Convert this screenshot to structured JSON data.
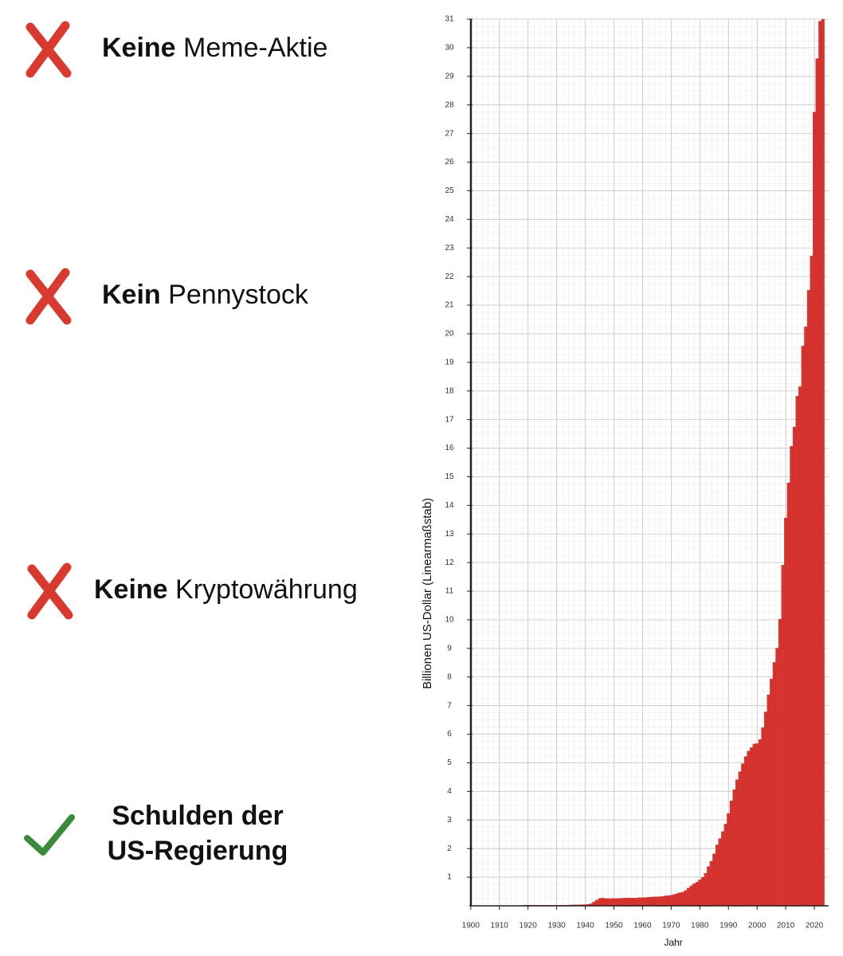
{
  "items": [
    {
      "mark": "cross",
      "bold": "Keine",
      "text": "Meme-Aktie"
    },
    {
      "mark": "cross",
      "bold": "Kein",
      "text": "Pennystock"
    },
    {
      "mark": "cross",
      "bold": "Keine",
      "text": "Kryptowährung"
    },
    {
      "mark": "check",
      "lines": [
        "Schulden der",
        "US-Regierung"
      ]
    }
  ],
  "chart_data": {
    "type": "bar",
    "y_label": "Billionen US-Dollar (Linearmaßstab)",
    "x_label": "Jahr",
    "x": [
      1900,
      1901,
      1902,
      1903,
      1904,
      1905,
      1906,
      1907,
      1908,
      1909,
      1910,
      1911,
      1912,
      1913,
      1914,
      1915,
      1916,
      1917,
      1918,
      1919,
      1920,
      1921,
      1922,
      1923,
      1924,
      1925,
      1926,
      1927,
      1928,
      1929,
      1930,
      1931,
      1932,
      1933,
      1934,
      1935,
      1936,
      1937,
      1938,
      1939,
      1940,
      1941,
      1942,
      1943,
      1944,
      1945,
      1946,
      1947,
      1948,
      1949,
      1950,
      1951,
      1952,
      1953,
      1954,
      1955,
      1956,
      1957,
      1958,
      1959,
      1960,
      1961,
      1962,
      1963,
      1964,
      1965,
      1966,
      1967,
      1968,
      1969,
      1970,
      1971,
      1972,
      1973,
      1974,
      1975,
      1976,
      1977,
      1978,
      1979,
      1980,
      1981,
      1982,
      1983,
      1984,
      1985,
      1986,
      1987,
      1988,
      1989,
      1990,
      1991,
      1992,
      1993,
      1994,
      1995,
      1996,
      1997,
      1998,
      1999,
      2000,
      2001,
      2002,
      2003,
      2004,
      2005,
      2006,
      2007,
      2008,
      2009,
      2010,
      2011,
      2012,
      2013,
      2014,
      2015,
      2016,
      2017,
      2018,
      2019,
      2020,
      2021,
      2022,
      2023
    ],
    "values": [
      0.001,
      0.001,
      0.001,
      0.001,
      0.001,
      0.001,
      0.001,
      0.001,
      0.001,
      0.001,
      0.001,
      0.001,
      0.001,
      0.001,
      0.001,
      0.001,
      0.001,
      0.006,
      0.012,
      0.025,
      0.024,
      0.024,
      0.023,
      0.022,
      0.021,
      0.02,
      0.019,
      0.018,
      0.018,
      0.017,
      0.016,
      0.017,
      0.019,
      0.022,
      0.027,
      0.029,
      0.034,
      0.036,
      0.037,
      0.04,
      0.043,
      0.049,
      0.072,
      0.137,
      0.201,
      0.259,
      0.269,
      0.258,
      0.252,
      0.253,
      0.257,
      0.255,
      0.259,
      0.266,
      0.271,
      0.274,
      0.273,
      0.271,
      0.276,
      0.285,
      0.286,
      0.289,
      0.298,
      0.306,
      0.312,
      0.317,
      0.32,
      0.326,
      0.348,
      0.354,
      0.371,
      0.398,
      0.427,
      0.458,
      0.475,
      0.533,
      0.62,
      0.699,
      0.772,
      0.827,
      0.908,
      0.998,
      1.14,
      1.37,
      1.56,
      1.82,
      2.13,
      2.35,
      2.6,
      2.86,
      3.23,
      3.67,
      4.06,
      4.41,
      4.69,
      4.97,
      5.22,
      5.41,
      5.53,
      5.66,
      5.67,
      5.81,
      6.23,
      6.78,
      7.38,
      7.93,
      8.51,
      9.01,
      10.02,
      11.91,
      13.56,
      14.79,
      16.07,
      16.74,
      17.82,
      18.15,
      19.57,
      20.24,
      21.52,
      22.72,
      27.75,
      29.62,
      30.93,
      31.0
    ],
    "color": "#d8332e",
    "xlim": [
      1899.5,
      2025
    ],
    "xticks": [
      1900,
      1910,
      1920,
      1930,
      1940,
      1950,
      1960,
      1970,
      1980,
      1990,
      2000,
      2010,
      2020
    ],
    "ylim": [
      0,
      31
    ],
    "yticks": [
      1,
      2,
      3,
      4,
      5,
      6,
      7,
      8,
      9,
      10,
      11,
      12,
      13,
      14,
      15,
      16,
      17,
      18,
      19,
      20,
      21,
      22,
      23,
      24,
      25,
      26,
      27,
      28,
      29,
      30,
      31
    ],
    "grid": true
  }
}
